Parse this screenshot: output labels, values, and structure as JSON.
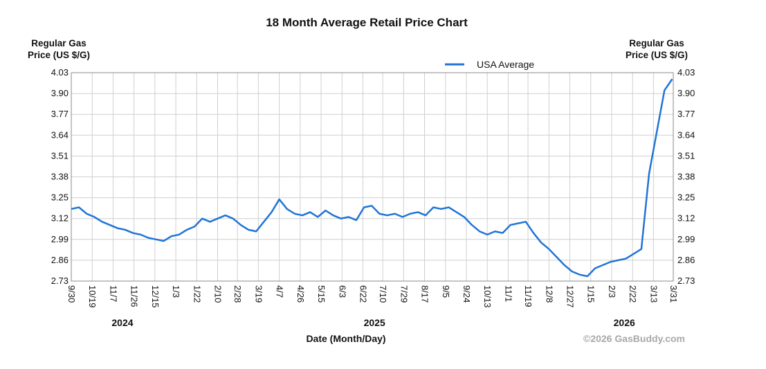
{
  "chart_data": {
    "type": "line",
    "title": "18 Month Average Retail Price Chart",
    "y_label": "Regular Gas Price (US $/G)",
    "y2_label": "Regular Gas Price (US $/G)",
    "x_label": "Date (Month/Day)",
    "credit": "©2026 GasBuddy.com",
    "year_labels": [
      "2024",
      "2025",
      "2026"
    ],
    "legend": "top",
    "grid": true,
    "x": [
      "2024-09-30",
      "2024-10-07",
      "2024-10-14",
      "2024-10-21",
      "2024-10-28",
      "2024-11-04",
      "2024-11-11",
      "2024-11-18",
      "2024-11-25",
      "2024-12-02",
      "2024-12-09",
      "2024-12-16",
      "2024-12-23",
      "2024-12-30",
      "2025-01-06",
      "2025-01-13",
      "2025-01-20",
      "2025-01-27",
      "2025-02-03",
      "2025-02-10",
      "2025-02-17",
      "2025-02-24",
      "2025-03-03",
      "2025-03-10",
      "2025-03-17",
      "2025-03-24",
      "2025-03-31",
      "2025-04-07",
      "2025-04-14",
      "2025-04-21",
      "2025-04-28",
      "2025-05-05",
      "2025-05-12",
      "2025-05-19",
      "2025-05-26",
      "2025-06-02",
      "2025-06-09",
      "2025-06-16",
      "2025-06-23",
      "2025-06-30",
      "2025-07-07",
      "2025-07-14",
      "2025-07-21",
      "2025-07-28",
      "2025-08-04",
      "2025-08-11",
      "2025-08-18",
      "2025-08-25",
      "2025-09-01",
      "2025-09-08",
      "2025-09-15",
      "2025-09-22",
      "2025-09-29",
      "2025-10-06",
      "2025-10-13",
      "2025-10-20",
      "2025-10-27",
      "2025-11-03",
      "2025-11-10",
      "2025-11-17",
      "2025-11-24",
      "2025-12-01",
      "2025-12-08",
      "2025-12-15",
      "2025-12-22",
      "2025-12-29",
      "2026-01-05",
      "2026-01-12",
      "2026-01-19",
      "2026-01-26",
      "2026-02-02",
      "2026-02-09",
      "2026-02-16",
      "2026-02-23",
      "2026-03-02",
      "2026-03-09",
      "2026-03-16",
      "2026-03-23",
      "2026-03-30"
    ],
    "series": [
      {
        "name": "USA Average",
        "color": "#1f74d6",
        "values": [
          3.18,
          3.19,
          3.15,
          3.13,
          3.1,
          3.08,
          3.06,
          3.05,
          3.03,
          3.02,
          3.0,
          2.99,
          2.98,
          3.01,
          3.02,
          3.05,
          3.07,
          3.12,
          3.1,
          3.12,
          3.14,
          3.12,
          3.08,
          3.05,
          3.04,
          3.1,
          3.16,
          3.24,
          3.18,
          3.15,
          3.14,
          3.16,
          3.13,
          3.17,
          3.14,
          3.12,
          3.13,
          3.11,
          3.19,
          3.2,
          3.15,
          3.14,
          3.15,
          3.13,
          3.15,
          3.16,
          3.14,
          3.19,
          3.18,
          3.19,
          3.16,
          3.13,
          3.08,
          3.04,
          3.02,
          3.04,
          3.03,
          3.08,
          3.09,
          3.1,
          3.03,
          2.97,
          2.93,
          2.88,
          2.83,
          2.79,
          2.77,
          2.76,
          2.81,
          2.83,
          2.85,
          2.86,
          2.87,
          2.9,
          2.93,
          3.4,
          3.66,
          3.92,
          3.99
        ]
      }
    ],
    "xlim": [
      "2024-09-30",
      "2026-03-31"
    ],
    "xticks": [
      {
        "value": "2024-09-30",
        "label": "9/30"
      },
      {
        "value": "2024-10-19",
        "label": "10/19"
      },
      {
        "value": "2024-11-07",
        "label": "11/7"
      },
      {
        "value": "2024-11-26",
        "label": "11/26"
      },
      {
        "value": "2024-12-15",
        "label": "12/15"
      },
      {
        "value": "2025-01-03",
        "label": "1/3"
      },
      {
        "value": "2025-01-22",
        "label": "1/22"
      },
      {
        "value": "2025-02-10",
        "label": "2/10"
      },
      {
        "value": "2025-02-28",
        "label": "2/28"
      },
      {
        "value": "2025-03-19",
        "label": "3/19"
      },
      {
        "value": "2025-04-07",
        "label": "4/7"
      },
      {
        "value": "2025-04-26",
        "label": "4/26"
      },
      {
        "value": "2025-05-15",
        "label": "5/15"
      },
      {
        "value": "2025-06-03",
        "label": "6/3"
      },
      {
        "value": "2025-06-22",
        "label": "6/22"
      },
      {
        "value": "2025-07-10",
        "label": "7/10"
      },
      {
        "value": "2025-07-29",
        "label": "7/29"
      },
      {
        "value": "2025-08-17",
        "label": "8/17"
      },
      {
        "value": "2025-09-05",
        "label": "9/5"
      },
      {
        "value": "2025-09-24",
        "label": "9/24"
      },
      {
        "value": "2025-10-13",
        "label": "10/13"
      },
      {
        "value": "2025-11-01",
        "label": "11/1"
      },
      {
        "value": "2025-11-19",
        "label": "11/19"
      },
      {
        "value": "2025-12-08",
        "label": "12/8"
      },
      {
        "value": "2025-12-27",
        "label": "12/27"
      },
      {
        "value": "2026-01-15",
        "label": "1/15"
      },
      {
        "value": "2026-02-03",
        "label": "2/3"
      },
      {
        "value": "2026-02-22",
        "label": "2/22"
      },
      {
        "value": "2026-03-13",
        "label": "3/13"
      },
      {
        "value": "2026-03-31",
        "label": "3/31"
      }
    ],
    "ylim": [
      2.73,
      4.03
    ],
    "yticks": [
      2.73,
      2.86,
      2.99,
      3.12,
      3.25,
      3.38,
      3.51,
      3.64,
      3.77,
      {
        "value": 3.9,
        "label": "3.90"
      },
      4.03
    ]
  }
}
